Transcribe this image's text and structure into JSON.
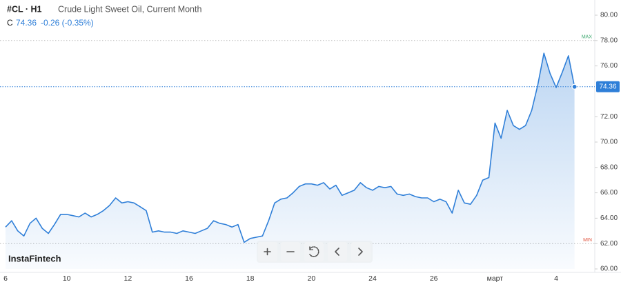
{
  "chart_data": {
    "type": "area",
    "symbol": "#CL · H1",
    "title": "Crude Light Sweet Oil, Current Month",
    "close_prefix": "C",
    "change": "-0.26 (-0.35%)",
    "brand": "InstaFintech",
    "color": "#2f7fd8",
    "categories": [
      "6",
      null,
      null,
      null,
      null,
      null,
      null,
      null,
      null,
      null,
      "10",
      null,
      null,
      null,
      null,
      null,
      null,
      null,
      null,
      null,
      "12",
      null,
      null,
      null,
      null,
      null,
      null,
      null,
      null,
      null,
      "16",
      null,
      null,
      null,
      null,
      null,
      null,
      null,
      null,
      null,
      "18",
      null,
      null,
      null,
      null,
      null,
      null,
      null,
      null,
      null,
      "20",
      null,
      null,
      null,
      null,
      null,
      null,
      null,
      null,
      null,
      "24",
      null,
      null,
      null,
      null,
      null,
      null,
      null,
      null,
      null,
      "26",
      null,
      null,
      null,
      null,
      null,
      null,
      null,
      null,
      null,
      "март",
      null,
      null,
      null,
      null,
      null,
      null,
      null,
      null,
      null,
      "4",
      null,
      null,
      null
    ],
    "values": [
      63.3,
      63.8,
      63.0,
      62.6,
      63.6,
      64.0,
      63.2,
      62.8,
      63.5,
      64.3,
      64.3,
      64.2,
      64.1,
      64.4,
      64.1,
      64.3,
      64.6,
      65.0,
      65.6,
      65.2,
      65.3,
      65.2,
      64.9,
      64.6,
      62.9,
      63.0,
      62.9,
      62.9,
      62.8,
      63.0,
      62.9,
      62.8,
      63.0,
      63.2,
      63.8,
      63.6,
      63.5,
      63.3,
      63.5,
      62.1,
      62.4,
      62.5,
      62.6,
      63.8,
      65.2,
      65.5,
      65.6,
      66.0,
      66.5,
      66.7,
      66.7,
      66.6,
      66.8,
      66.3,
      66.6,
      65.8,
      66.0,
      66.2,
      66.8,
      66.4,
      66.2,
      66.5,
      66.4,
      66.5,
      65.9,
      65.8,
      65.9,
      65.7,
      65.6,
      65.6,
      65.3,
      65.5,
      65.3,
      64.4,
      66.2,
      65.2,
      65.1,
      65.8,
      67.0,
      67.2,
      71.5,
      70.3,
      72.5,
      71.3,
      71.0,
      71.3,
      72.5,
      74.5,
      77.0,
      75.4,
      74.3,
      75.5,
      76.8,
      74.36
    ],
    "last": {
      "value": 74.36,
      "label": "74.36"
    },
    "max_line": {
      "value": 78,
      "label": "MAX"
    },
    "min_line": {
      "value": 62,
      "label": "MIN"
    },
    "ylim": [
      60,
      80
    ],
    "yticks": [
      {
        "value": 60,
        "label": "60.00"
      },
      {
        "value": 62,
        "label": "62.00"
      },
      {
        "value": 64,
        "label": "64.00"
      },
      {
        "value": 66,
        "label": "66.00"
      },
      {
        "value": 68,
        "label": "68.00"
      },
      {
        "value": 70,
        "label": "70.00"
      },
      {
        "value": 72,
        "label": "72.00"
      },
      {
        "value": 76,
        "label": "76.00"
      },
      {
        "value": 78,
        "label": "78.00"
      },
      {
        "value": 80,
        "label": "80.00"
      }
    ]
  }
}
